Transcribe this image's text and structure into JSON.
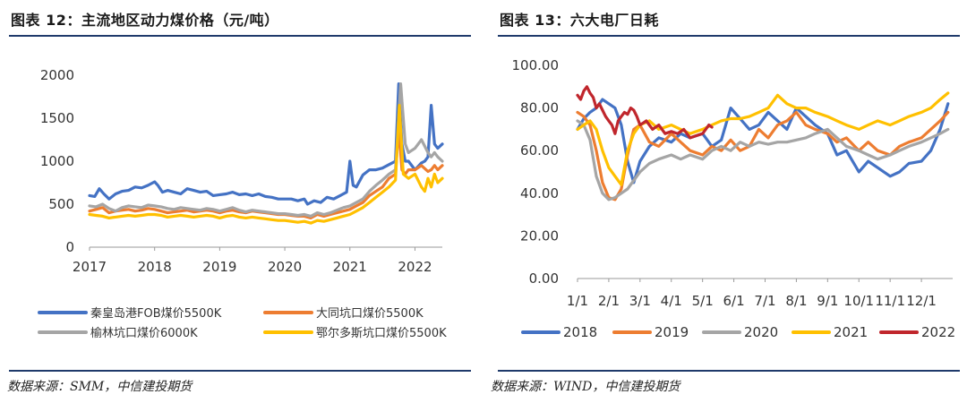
{
  "chart_data": [
    {
      "type": "line",
      "title": "图表 12：主流地区动力煤价格（元/吨）",
      "source": "数据来源：SMM，中信建投期货",
      "xlabel": "",
      "ylabel": "",
      "xlim": [
        2017,
        2022.42
      ],
      "ylim": [
        0,
        2000
      ],
      "y_ticks": [
        0,
        500,
        1000,
        1500,
        2000
      ],
      "x_ticks": [
        2017,
        2018,
        2019,
        2020,
        2021,
        2022
      ],
      "grid": false,
      "legend_position": "bottom",
      "series": [
        {
          "name": "秦皇岛港FOB煤价5500K",
          "color": "#4472c4",
          "x": [
            2017.0,
            2017.08,
            2017.15,
            2017.22,
            2017.3,
            2017.4,
            2017.5,
            2017.6,
            2017.7,
            2017.8,
            2017.9,
            2018.0,
            2018.05,
            2018.12,
            2018.2,
            2018.3,
            2018.4,
            2018.5,
            2018.6,
            2018.7,
            2018.8,
            2018.9,
            2019.0,
            2019.1,
            2019.2,
            2019.3,
            2019.4,
            2019.5,
            2019.6,
            2019.7,
            2019.8,
            2019.9,
            2020.0,
            2020.1,
            2020.2,
            2020.3,
            2020.35,
            2020.45,
            2020.55,
            2020.65,
            2020.75,
            2020.85,
            2020.95,
            2021.0,
            2021.05,
            2021.1,
            2021.2,
            2021.3,
            2021.4,
            2021.5,
            2021.6,
            2021.7,
            2021.75,
            2021.8,
            2021.85,
            2021.9,
            2022.0,
            2022.1,
            2022.15,
            2022.2,
            2022.25,
            2022.3,
            2022.35,
            2022.42
          ],
          "values": [
            600,
            590,
            680,
            620,
            560,
            620,
            650,
            660,
            700,
            690,
            720,
            760,
            720,
            640,
            660,
            640,
            620,
            680,
            660,
            640,
            650,
            600,
            610,
            620,
            640,
            610,
            620,
            600,
            620,
            590,
            580,
            560,
            560,
            560,
            540,
            560,
            500,
            540,
            520,
            580,
            560,
            600,
            640,
            1000,
            720,
            700,
            840,
            900,
            900,
            920,
            960,
            1000,
            1900,
            1200,
            1000,
            1000,
            900,
            980,
            1000,
            1050,
            1650,
            1200,
            1150,
            1200
          ]
        },
        {
          "name": "大同坑口煤价5500K",
          "color": "#ed7d31",
          "x": [
            2017.0,
            2017.1,
            2017.2,
            2017.3,
            2017.4,
            2017.5,
            2017.6,
            2017.7,
            2017.8,
            2017.9,
            2018.0,
            2018.1,
            2018.2,
            2018.3,
            2018.4,
            2018.5,
            2018.6,
            2018.7,
            2018.8,
            2018.9,
            2019.0,
            2019.1,
            2019.2,
            2019.3,
            2019.4,
            2019.5,
            2019.6,
            2019.7,
            2019.8,
            2019.9,
            2020.0,
            2020.1,
            2020.2,
            2020.3,
            2020.4,
            2020.5,
            2020.6,
            2020.7,
            2020.8,
            2020.9,
            2021.0,
            2021.1,
            2021.2,
            2021.3,
            2021.4,
            2021.5,
            2021.6,
            2021.7,
            2021.75,
            2021.8,
            2021.85,
            2021.9,
            2022.0,
            2022.1,
            2022.2,
            2022.25,
            2022.3,
            2022.35,
            2022.42
          ],
          "values": [
            420,
            440,
            460,
            400,
            420,
            430,
            440,
            420,
            430,
            450,
            440,
            420,
            400,
            410,
            420,
            430,
            410,
            420,
            430,
            420,
            400,
            420,
            430,
            410,
            400,
            420,
            410,
            400,
            390,
            380,
            380,
            370,
            360,
            360,
            340,
            380,
            360,
            380,
            400,
            420,
            440,
            480,
            520,
            600,
            650,
            700,
            800,
            850,
            1400,
            900,
            850,
            900,
            900,
            950,
            880,
            900,
            950,
            900,
            950
          ]
        },
        {
          "name": "榆林坑口煤价6000K",
          "color": "#a5a5a5",
          "x": [
            2017.0,
            2017.1,
            2017.2,
            2017.3,
            2017.4,
            2017.5,
            2017.6,
            2017.7,
            2017.8,
            2017.9,
            2018.0,
            2018.1,
            2018.2,
            2018.3,
            2018.4,
            2018.5,
            2018.6,
            2018.7,
            2018.8,
            2018.9,
            2019.0,
            2019.1,
            2019.2,
            2019.3,
            2019.4,
            2019.5,
            2019.6,
            2019.7,
            2019.8,
            2019.9,
            2020.0,
            2020.1,
            2020.2,
            2020.3,
            2020.4,
            2020.5,
            2020.6,
            2020.7,
            2020.8,
            2020.9,
            2021.0,
            2021.1,
            2021.2,
            2021.3,
            2021.4,
            2021.5,
            2021.6,
            2021.7,
            2021.78,
            2021.85,
            2021.9,
            2022.0,
            2022.1,
            2022.2,
            2022.25,
            2022.3,
            2022.35,
            2022.42
          ],
          "values": [
            480,
            470,
            500,
            450,
            420,
            460,
            480,
            470,
            460,
            490,
            480,
            470,
            450,
            440,
            460,
            450,
            440,
            430,
            450,
            440,
            420,
            440,
            460,
            430,
            410,
            430,
            420,
            410,
            400,
            390,
            390,
            380,
            370,
            380,
            360,
            400,
            380,
            400,
            430,
            460,
            480,
            520,
            560,
            650,
            720,
            780,
            850,
            900,
            1900,
            1200,
            1100,
            1150,
            1250,
            1100,
            1050,
            1100,
            1050,
            1000
          ]
        },
        {
          "name": "鄂尔多斯坑口煤价5500K",
          "color": "#ffc000",
          "x": [
            2017.0,
            2017.1,
            2017.2,
            2017.3,
            2017.4,
            2017.5,
            2017.6,
            2017.7,
            2017.8,
            2017.9,
            2018.0,
            2018.1,
            2018.2,
            2018.3,
            2018.4,
            2018.5,
            2018.6,
            2018.7,
            2018.8,
            2018.9,
            2019.0,
            2019.1,
            2019.2,
            2019.3,
            2019.4,
            2019.5,
            2019.6,
            2019.7,
            2019.8,
            2019.9,
            2020.0,
            2020.1,
            2020.2,
            2020.3,
            2020.4,
            2020.5,
            2020.6,
            2020.7,
            2020.8,
            2020.9,
            2021.0,
            2021.1,
            2021.2,
            2021.3,
            2021.4,
            2021.5,
            2021.6,
            2021.7,
            2021.76,
            2021.82,
            2021.9,
            2022.0,
            2022.1,
            2022.15,
            2022.2,
            2022.25,
            2022.3,
            2022.35,
            2022.42
          ],
          "values": [
            380,
            370,
            360,
            340,
            350,
            360,
            370,
            360,
            370,
            380,
            380,
            370,
            350,
            360,
            370,
            360,
            350,
            360,
            370,
            360,
            340,
            360,
            370,
            350,
            340,
            350,
            340,
            330,
            320,
            310,
            310,
            300,
            290,
            300,
            280,
            310,
            300,
            320,
            340,
            360,
            380,
            420,
            460,
            520,
            580,
            640,
            700,
            780,
            1650,
            850,
            800,
            850,
            700,
            650,
            800,
            700,
            850,
            750,
            800
          ]
        }
      ]
    },
    {
      "type": "line",
      "title": "图表 13：六大电厂日耗",
      "source": "数据来源：WIND，中信建投期货",
      "xlabel": "",
      "ylabel": "",
      "xlim": [
        1,
        13
      ],
      "ylim": [
        0,
        100
      ],
      "y_ticks": [
        "0.00",
        "20.00",
        "40.00",
        "60.00",
        "80.00",
        "100.00"
      ],
      "x_ticks": [
        "1/1",
        "2/1",
        "3/1",
        "4/1",
        "5/1",
        "6/1",
        "7/1",
        "8/1",
        "9/1",
        "10/1",
        "11/1",
        "12/1"
      ],
      "grid": false,
      "legend_position": "bottom",
      "series": [
        {
          "name": "2018",
          "color": "#4472c4",
          "x": [
            1.0,
            1.2,
            1.4,
            1.6,
            1.8,
            2.0,
            2.2,
            2.4,
            2.6,
            2.8,
            3.0,
            3.3,
            3.6,
            4.0,
            4.3,
            4.6,
            5.0,
            5.3,
            5.6,
            5.9,
            6.2,
            6.5,
            6.8,
            7.1,
            7.4,
            7.7,
            8.0,
            8.3,
            8.6,
            9.0,
            9.3,
            9.6,
            10.0,
            10.3,
            10.6,
            11.0,
            11.3,
            11.6,
            12.0,
            12.3,
            12.6,
            12.85
          ],
          "values": [
            70,
            75,
            78,
            80,
            84,
            82,
            80,
            72,
            55,
            45,
            55,
            62,
            66,
            64,
            68,
            66,
            68,
            62,
            65,
            80,
            75,
            70,
            72,
            78,
            74,
            70,
            80,
            76,
            72,
            68,
            58,
            60,
            50,
            55,
            52,
            48,
            50,
            54,
            55,
            60,
            70,
            82
          ]
        },
        {
          "name": "2019",
          "color": "#ed7d31",
          "x": [
            1.0,
            1.2,
            1.4,
            1.6,
            1.8,
            2.0,
            2.2,
            2.4,
            2.6,
            2.8,
            3.0,
            3.3,
            3.6,
            4.0,
            4.3,
            4.6,
            5.0,
            5.3,
            5.6,
            5.9,
            6.2,
            6.5,
            6.8,
            7.1,
            7.4,
            7.7,
            8.0,
            8.3,
            8.6,
            9.0,
            9.3,
            9.6,
            10.0,
            10.3,
            10.6,
            11.0,
            11.3,
            11.6,
            12.0,
            12.3,
            12.6,
            12.85
          ],
          "values": [
            78,
            76,
            72,
            60,
            45,
            38,
            37,
            42,
            58,
            70,
            72,
            64,
            62,
            68,
            64,
            60,
            58,
            62,
            60,
            65,
            60,
            62,
            70,
            66,
            72,
            74,
            78,
            72,
            70,
            68,
            64,
            66,
            60,
            64,
            60,
            58,
            62,
            64,
            66,
            70,
            74,
            78
          ]
        },
        {
          "name": "2020",
          "color": "#a5a5a5",
          "x": [
            1.0,
            1.2,
            1.4,
            1.6,
            1.8,
            2.0,
            2.2,
            2.4,
            2.6,
            2.8,
            3.0,
            3.3,
            3.6,
            4.0,
            4.3,
            4.6,
            5.0,
            5.3,
            5.6,
            5.9,
            6.2,
            6.5,
            6.8,
            7.1,
            7.4,
            7.7,
            8.0,
            8.3,
            8.6,
            9.0,
            9.3,
            9.6,
            10.0,
            10.3,
            10.6,
            11.0,
            11.3,
            11.6,
            12.0,
            12.3,
            12.6,
            12.85
          ],
          "values": [
            74,
            72,
            65,
            48,
            40,
            37,
            38,
            40,
            42,
            46,
            50,
            54,
            56,
            58,
            56,
            58,
            56,
            60,
            62,
            60,
            64,
            62,
            64,
            63,
            64,
            64,
            65,
            66,
            68,
            70,
            66,
            62,
            60,
            58,
            56,
            58,
            60,
            62,
            64,
            66,
            68,
            70
          ]
        },
        {
          "name": "2021",
          "color": "#ffc000",
          "x": [
            1.0,
            1.2,
            1.4,
            1.6,
            1.8,
            2.0,
            2.2,
            2.4,
            2.6,
            2.8,
            3.0,
            3.3,
            3.6,
            4.0,
            4.3,
            4.6,
            5.0,
            5.3,
            5.6,
            5.9,
            6.2,
            6.5,
            6.8,
            7.1,
            7.4,
            7.7,
            8.0,
            8.3,
            8.6,
            9.0,
            9.3,
            9.6,
            10.0,
            10.3,
            10.6,
            11.0,
            11.3,
            11.6,
            12.0,
            12.3,
            12.6,
            12.85
          ],
          "values": [
            70,
            72,
            74,
            70,
            60,
            52,
            48,
            44,
            60,
            68,
            72,
            74,
            70,
            72,
            70,
            68,
            70,
            72,
            74,
            75,
            75,
            76,
            78,
            80,
            86,
            82,
            80,
            80,
            78,
            76,
            74,
            72,
            70,
            72,
            74,
            72,
            74,
            76,
            78,
            80,
            84,
            87
          ]
        },
        {
          "name": "2022",
          "color": "#c0262c",
          "x": [
            1.0,
            1.1,
            1.2,
            1.3,
            1.4,
            1.5,
            1.6,
            1.7,
            1.8,
            1.9,
            2.0,
            2.1,
            2.2,
            2.3,
            2.4,
            2.5,
            2.6,
            2.7,
            2.8,
            2.9,
            3.0,
            3.1,
            3.2,
            3.4,
            3.6,
            3.8,
            4.0,
            4.2,
            4.4,
            4.6,
            4.8,
            5.0,
            5.1,
            5.2,
            5.3
          ],
          "values": [
            86,
            84,
            88,
            90,
            87,
            85,
            80,
            82,
            79,
            76,
            74,
            72,
            68,
            74,
            76,
            78,
            77,
            80,
            79,
            76,
            72,
            73,
            74,
            70,
            72,
            68,
            69,
            68,
            70,
            66,
            67,
            68,
            70,
            72,
            71
          ]
        }
      ]
    }
  ]
}
